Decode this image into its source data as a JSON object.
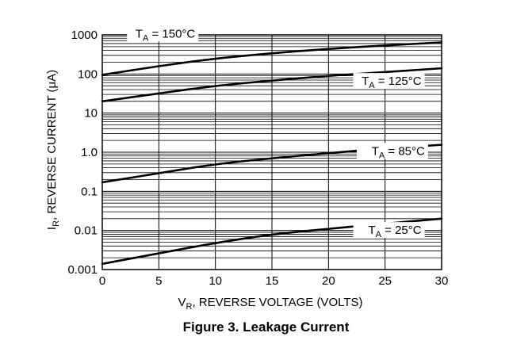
{
  "chart_data": {
    "type": "line",
    "y_scale": "log",
    "title": "",
    "caption": "Figure 3. Leakage Current",
    "xlabel_main": "V",
    "xlabel_sub": "R",
    "xlabel_rest": ", REVERSE VOLTAGE (VOLTS)",
    "ylabel_main": "I",
    "ylabel_sub": "R",
    "ylabel_rest": ", REVERSE CURRENT (μA)",
    "xlim": [
      0,
      30
    ],
    "ylim": [
      0.001,
      1000
    ],
    "grid": true,
    "x_ticks": [
      0,
      5,
      10,
      15,
      20,
      25,
      30
    ],
    "x_tick_labels": [
      "0",
      "5",
      "10",
      "15",
      "20",
      "25",
      "30"
    ],
    "y_ticks": [
      0.001,
      0.01,
      0.1,
      1,
      10,
      100,
      1000
    ],
    "y_tick_labels": [
      "0.001",
      "0.01",
      "0.1",
      "1.0",
      "10",
      "100",
      "1000"
    ],
    "x": [
      0,
      5,
      10,
      15,
      20,
      25,
      30
    ],
    "series": [
      {
        "name": "T_A = 150°C",
        "label_main": "T",
        "label_sub": "A",
        "label_rest": " = 150°C",
        "values": [
          95,
          160,
          250,
          340,
          440,
          540,
          640
        ]
      },
      {
        "name": "T_A = 125°C",
        "label_main": "T",
        "label_sub": "A",
        "label_rest": " = 125°C",
        "values": [
          20,
          32,
          50,
          68,
          90,
          112,
          140
        ]
      },
      {
        "name": "T_A = 85°C",
        "label_main": "T",
        "label_sub": "A",
        "label_rest": " = 85°C",
        "values": [
          0.17,
          0.29,
          0.5,
          0.7,
          0.95,
          1.25,
          1.55
        ]
      },
      {
        "name": "T_A = 25°C",
        "label_main": "T",
        "label_sub": "A",
        "label_rest": " = 25°C",
        "values": [
          0.0014,
          0.0026,
          0.0048,
          0.008,
          0.011,
          0.015,
          0.02
        ]
      }
    ],
    "colors": {
      "line": "#000000",
      "grid": "#000000",
      "background": "#ffffff"
    }
  }
}
